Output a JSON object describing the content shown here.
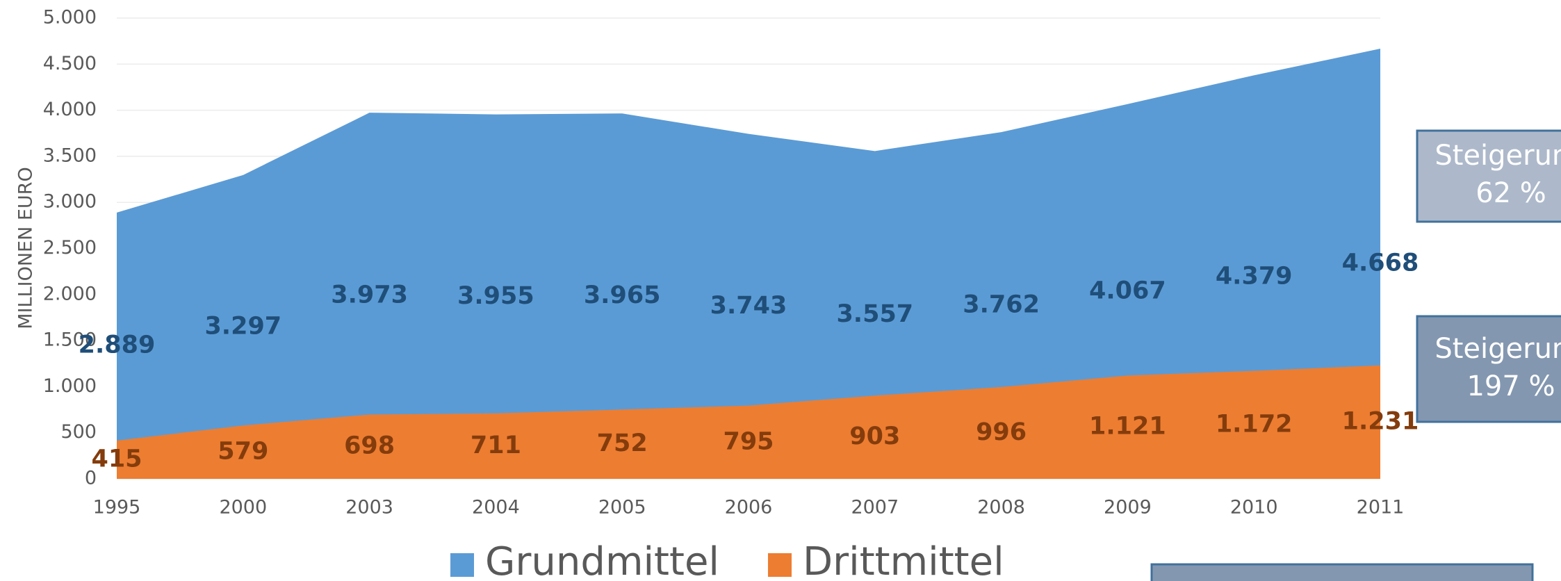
{
  "chart_data": {
    "type": "area",
    "y_label": "MILLIONEN EURO",
    "categories": [
      "1995",
      "2000",
      "2003",
      "2004",
      "2005",
      "2006",
      "2007",
      "2008",
      "2009",
      "2010",
      "2011"
    ],
    "series": [
      {
        "name": "Grundmittel",
        "color": "#5b9bd5",
        "label_color": "#1f4e79",
        "values": [
          2889,
          3297,
          3973,
          3955,
          3965,
          3743,
          3557,
          3762,
          4067,
          4379,
          4668
        ],
        "value_labels": [
          "2.889",
          "3.297",
          "3.973",
          "3.955",
          "3.965",
          "3.743",
          "3.557",
          "3.762",
          "4.067",
          "4.379",
          "4.668"
        ]
      },
      {
        "name": "Drittmittel",
        "color": "#ed7d31",
        "label_color": "#843c0c",
        "values": [
          415,
          579,
          698,
          711,
          752,
          795,
          903,
          996,
          1121,
          1172,
          1231
        ],
        "value_labels": [
          "415",
          "579",
          "698",
          "711",
          "752",
          "795",
          "903",
          "996",
          "1.121",
          "1.172",
          "1.231"
        ]
      }
    ],
    "ylim": [
      0,
      5000
    ],
    "yticks": [
      0,
      500,
      {
        "value": 1000,
        "label": "1.000"
      },
      {
        "value": 1500,
        "label": "1.500"
      },
      {
        "value": 2000,
        "label": "2.000"
      },
      {
        "value": 2500,
        "label": "2.500"
      },
      {
        "value": 3000,
        "label": "3.000"
      },
      {
        "value": 3500,
        "label": "3.500"
      },
      {
        "value": 4000,
        "label": "4.000"
      },
      {
        "value": 4500,
        "label": "4.500"
      },
      {
        "value": 5000,
        "label": "5.000"
      }
    ],
    "grid": true,
    "legend": "bottom",
    "annotations": [
      {
        "lines": [
          "Steigerung",
          "62 %"
        ]
      },
      {
        "lines": [
          "Steigerung",
          "197 %"
        ]
      }
    ]
  }
}
